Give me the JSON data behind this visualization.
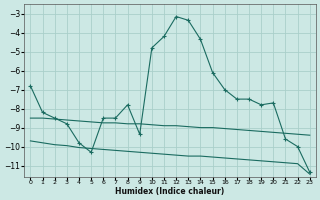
{
  "title": "",
  "xlabel": "Humidex (Indice chaleur)",
  "bg_color": "#cce8e4",
  "grid_color": "#aacfca",
  "line_color": "#1a6b60",
  "xlim": [
    -0.5,
    23.5
  ],
  "ylim": [
    -11.6,
    -2.5
  ],
  "yticks": [
    -3,
    -4,
    -5,
    -6,
    -7,
    -8,
    -9,
    -10,
    -11
  ],
  "xticks": [
    0,
    1,
    2,
    3,
    4,
    5,
    6,
    7,
    8,
    9,
    10,
    11,
    12,
    13,
    14,
    15,
    16,
    17,
    18,
    19,
    20,
    21,
    22,
    23
  ],
  "line1_x": [
    0,
    1,
    2,
    3,
    4,
    5,
    6,
    7,
    8,
    9,
    10,
    11,
    12,
    13,
    14,
    15,
    16,
    17,
    18,
    19,
    20,
    21,
    22,
    23
  ],
  "line1_y": [
    -6.8,
    -8.2,
    -8.5,
    -8.8,
    -9.8,
    -10.3,
    -8.5,
    -8.5,
    -7.8,
    -9.35,
    -4.8,
    -4.2,
    -3.15,
    -3.35,
    -4.35,
    -6.1,
    -7.0,
    -7.5,
    -7.5,
    -7.8,
    -7.7,
    -9.6,
    -10.0,
    -11.35
  ],
  "line2_x": [
    0,
    1,
    2,
    3,
    4,
    5,
    6,
    7,
    8,
    9,
    10,
    11,
    12,
    13,
    14,
    15,
    16,
    17,
    18,
    19,
    20,
    21,
    22,
    23
  ],
  "line2_y": [
    -8.5,
    -8.5,
    -8.55,
    -8.6,
    -8.65,
    -8.7,
    -8.75,
    -8.75,
    -8.8,
    -8.8,
    -8.85,
    -8.9,
    -8.9,
    -8.95,
    -9.0,
    -9.0,
    -9.05,
    -9.1,
    -9.15,
    -9.2,
    -9.25,
    -9.3,
    -9.35,
    -9.4
  ],
  "line3_x": [
    0,
    1,
    2,
    3,
    4,
    5,
    6,
    7,
    8,
    9,
    10,
    11,
    12,
    13,
    14,
    15,
    16,
    17,
    18,
    19,
    20,
    21,
    22,
    23
  ],
  "line3_y": [
    -9.7,
    -9.8,
    -9.9,
    -9.95,
    -10.05,
    -10.1,
    -10.15,
    -10.2,
    -10.25,
    -10.3,
    -10.35,
    -10.4,
    -10.45,
    -10.5,
    -10.5,
    -10.55,
    -10.6,
    -10.65,
    -10.7,
    -10.75,
    -10.8,
    -10.85,
    -10.9,
    -11.45
  ]
}
